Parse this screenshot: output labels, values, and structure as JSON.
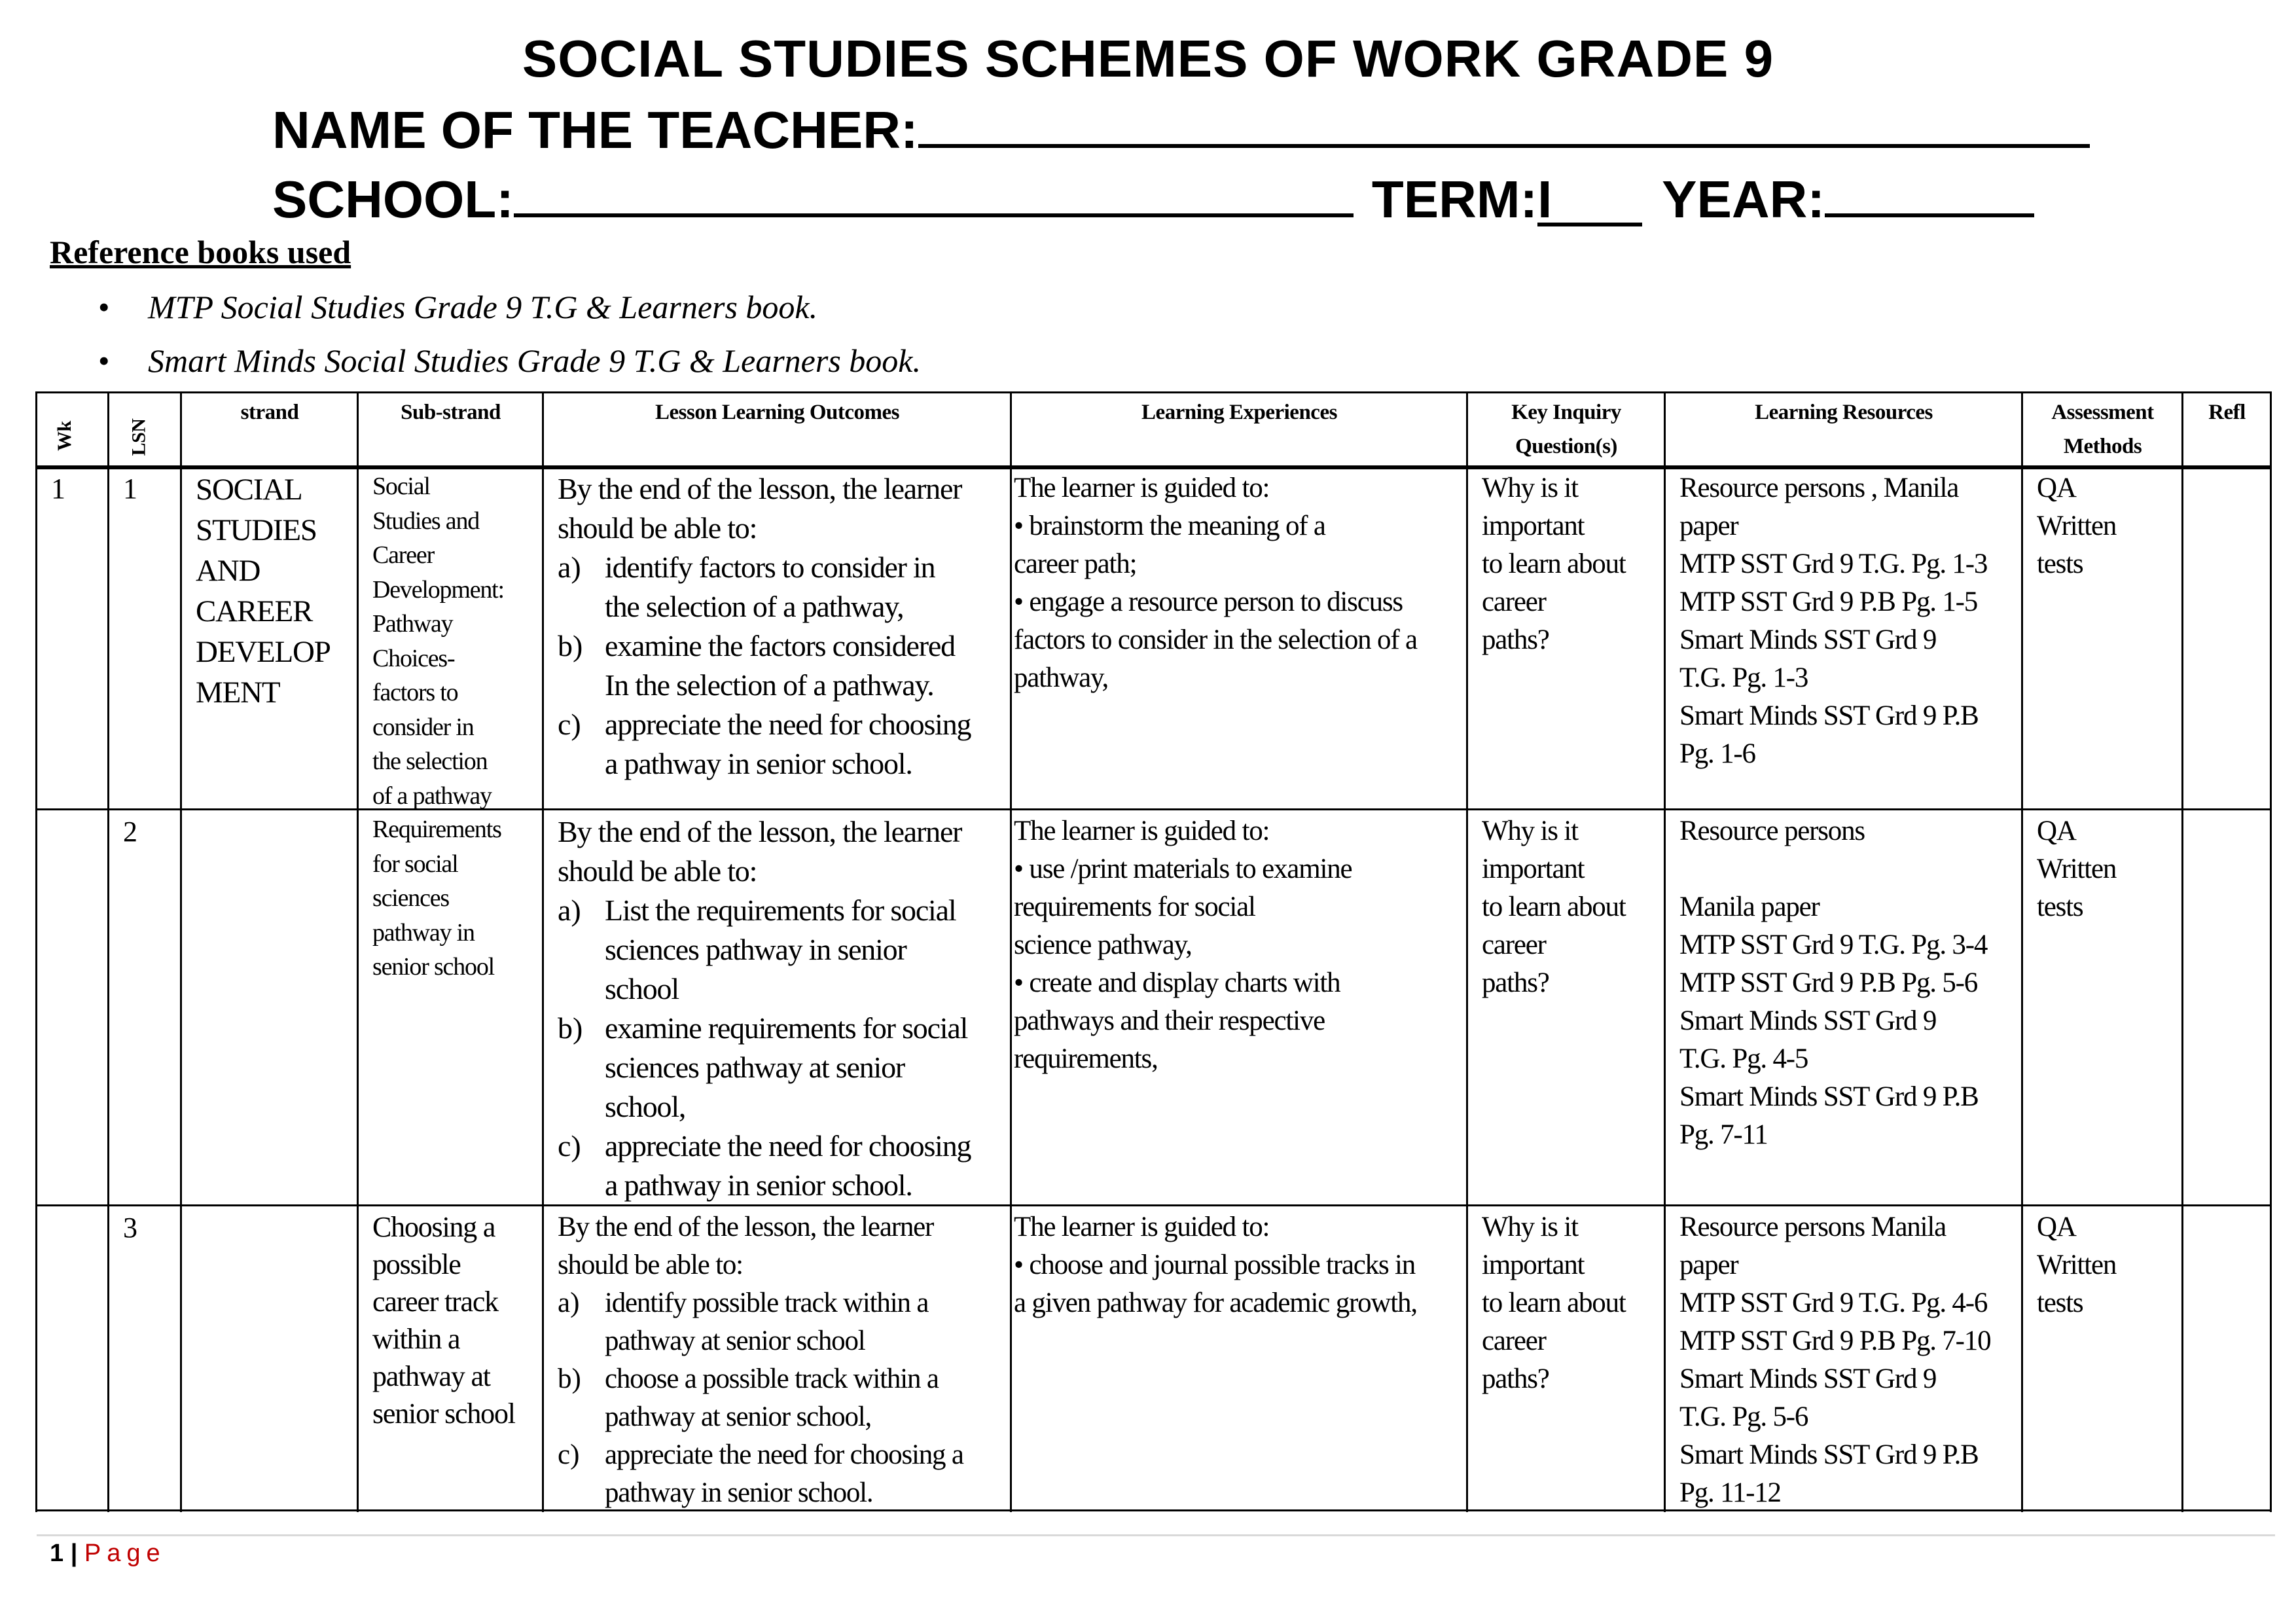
{
  "header": {
    "title": "SOCIAL STUDIES SCHEMES OF WORK GRADE 9",
    "teacher_label": "NAME OF THE TEACHER:",
    "school_label": "SCHOOL:",
    "term_label": "TERM:",
    "term_value": "I",
    "year_label": "YEAR:"
  },
  "references": {
    "heading": "Reference books used",
    "items": [
      "MTP Social Studies Grade 9 T.G & Learners book.",
      "Smart Minds Social Studies Grade 9 T.G & Learners book."
    ]
  },
  "table": {
    "columns": [
      "Wk",
      "LSN",
      "strand",
      "Sub-strand",
      "Lesson Learning Outcomes",
      "Learning Experiences",
      "Key Inquiry Question(s)",
      "Learning Resources",
      "Assessment Methods",
      "Refl"
    ],
    "rows": [
      {
        "wk": "1",
        "lsn": "1",
        "strand": [
          "SOCIAL",
          "STUDIES",
          "AND",
          "CAREER",
          "DEVELOP",
          "MENT"
        ],
        "substrand": [
          "Social",
          "Studies and",
          "Career",
          "Development:",
          "Pathway",
          "Choices-",
          "factors to",
          "consider  in",
          "the selection",
          "of a pathway"
        ],
        "outcomes": {
          "intro": [
            "By the end of the lesson, the learner",
            "should be able to:"
          ],
          "items": [
            {
              "label": "a)",
              "lines": [
                "identify factors to consider in",
                "the selection of a pathway,"
              ]
            },
            {
              "label": "b)",
              "lines": [
                "examine the factors considered",
                "In the selection of a pathway."
              ]
            },
            {
              "label": "c)",
              "lines": [
                "appreciate the need for choosing",
                "a pathway in senior school."
              ]
            }
          ]
        },
        "experiences": [
          "The learner is guided to:",
          "• brainstorm the meaning of a",
          "career path;",
          "• engage a resource person to discuss",
          "factors to consider in the selection of a",
          "pathway,"
        ],
        "inquiry": [
          "Why is it",
          "important",
          "to learn about",
          "career",
          "paths?"
        ],
        "resources": [
          "Resource persons , Manila",
          "paper",
          "MTP SST Grd 9 T.G. Pg. 1-3",
          "MTP SST Grd 9 P.B Pg. 1-5",
          "Smart Minds SST Grd 9",
          "T.G. Pg. 1-3",
          "Smart Minds SST Grd 9 P.B",
          "Pg. 1-6"
        ],
        "assessment": [
          "QA",
          "Written",
          "tests"
        ]
      },
      {
        "wk": "",
        "lsn": "2",
        "strand": [],
        "substrand": [
          "Requirements",
          "for social",
          "sciences",
          "pathway in",
          "senior school"
        ],
        "outcomes": {
          "intro": [
            "By the end of the lesson, the learner",
            "should be able to:"
          ],
          "items": [
            {
              "label": "a)",
              "lines": [
                "List the requirements for social",
                "sciences pathway in senior",
                "school"
              ]
            },
            {
              "label": "b)",
              "lines": [
                "examine requirements for social",
                "sciences pathway at senior",
                "school,"
              ]
            },
            {
              "label": "c)",
              "lines": [
                "appreciate the need for choosing",
                "a pathway in senior school."
              ]
            }
          ]
        },
        "experiences": [
          "The learner is guided to:",
          "• use /print materials to examine",
          "requirements for social",
          "science pathway,",
          "• create and display charts with",
          "pathways and their respective",
          "requirements,"
        ],
        "inquiry": [
          "Why is it",
          "important",
          "to learn about",
          "career",
          "paths?"
        ],
        "resources": [
          "Resource persons",
          "",
          "Manila paper",
          "MTP SST Grd 9 T.G. Pg. 3-4",
          "MTP SST Grd 9 P.B Pg. 5-6",
          "Smart Minds SST Grd 9",
          "T.G. Pg. 4-5",
          "Smart Minds SST Grd 9 P.B",
          "Pg. 7-11"
        ],
        "assessment": [
          "QA",
          "Written",
          "tests"
        ]
      },
      {
        "wk": "",
        "lsn": "3",
        "strand": [],
        "substrand": [
          "Choosing a",
          "possible",
          "career track",
          "within a",
          "pathway at",
          "senior school"
        ],
        "outcomes": {
          "intro": [
            "By the end of the lesson, the learner",
            "should be able to:"
          ],
          "items": [
            {
              "label": "a)",
              "lines": [
                "identify possible track within a",
                "pathway at senior school"
              ]
            },
            {
              "label": "b)",
              "lines": [
                "choose a possible track within a",
                "pathway at senior school,"
              ]
            },
            {
              "label": "c)",
              "lines": [
                "appreciate the need for choosing a",
                "pathway in senior school."
              ]
            }
          ]
        },
        "experiences": [
          "The learner is guided to:",
          "• choose and journal possible tracks in",
          "a given pathway for academic growth,"
        ],
        "inquiry": [
          "Why is it",
          "important",
          "to learn about",
          "career",
          "paths?"
        ],
        "resources": [
          "Resource persons  Manila",
          "paper",
          "MTP SST Grd 9 T.G. Pg. 4-6",
          "MTP SST Grd 9 P.B Pg. 7-10",
          "Smart Minds SST Grd 9",
          "T.G. Pg. 5-6",
          "Smart Minds SST Grd 9 P.B",
          "Pg. 11-12"
        ],
        "assessment": [
          "QA",
          "Written",
          "tests"
        ]
      }
    ]
  },
  "footer": {
    "page_number": "1",
    "separator": "|",
    "page_label": "Page",
    "page_label_color": "#c00000"
  }
}
